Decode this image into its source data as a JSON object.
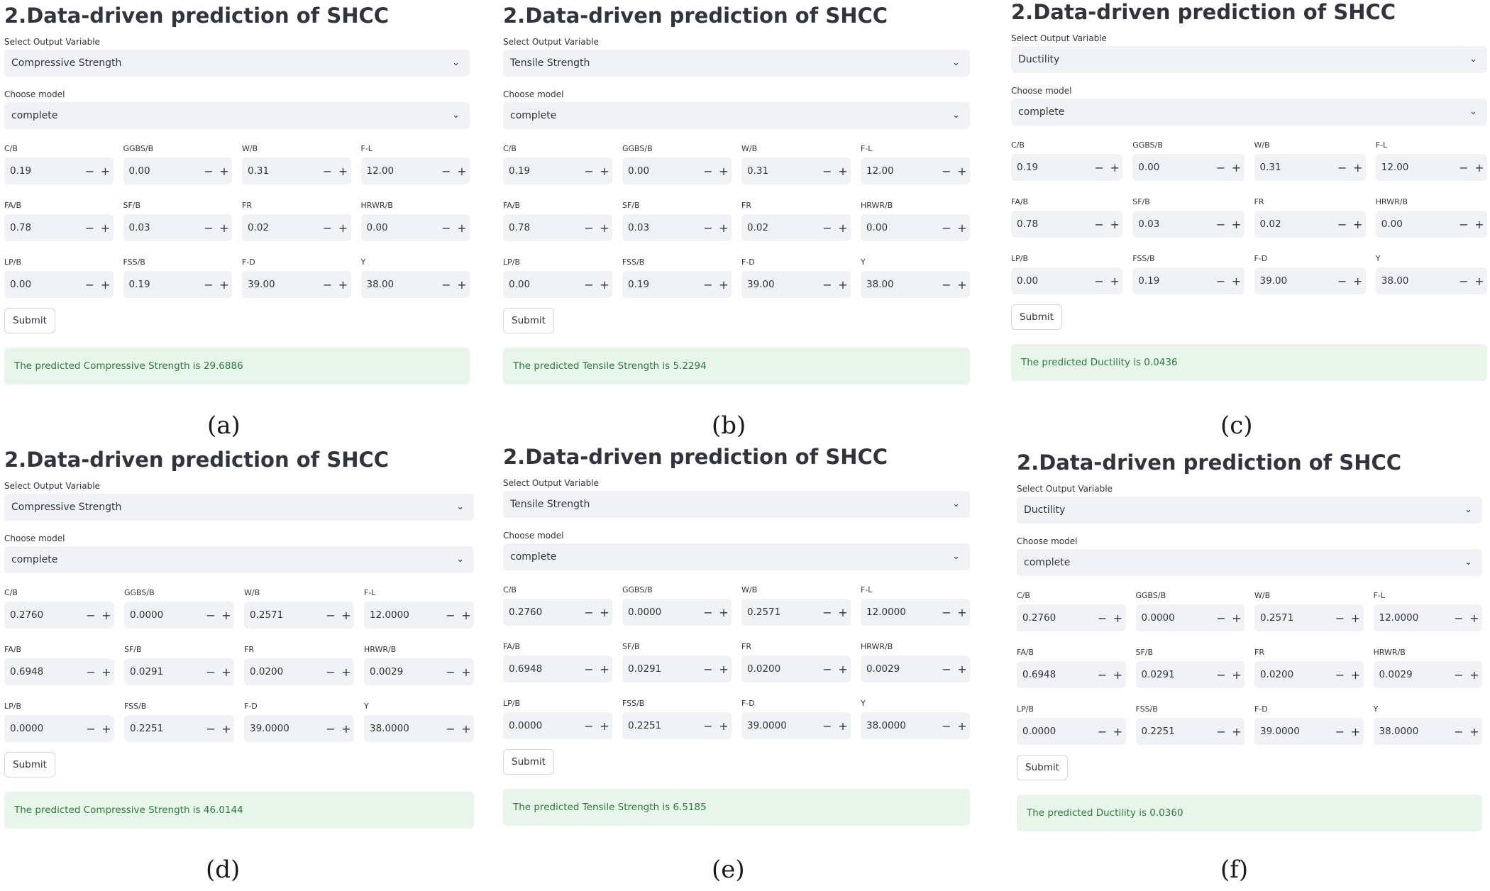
{
  "labels": {
    "select_output": "Select Output Variable",
    "choose_model": "Choose model",
    "submit": "Submit"
  },
  "colors": {
    "field_bg": "#f0f2f6",
    "success_bg": "#e8f5ea",
    "success_text": "#2b7a3b"
  },
  "icons": {
    "dropdown": "chevron-down-icon",
    "minus": "minus-icon",
    "plus": "plus-icon"
  },
  "panels": [
    {
      "title": "2.Data-driven prediction of SHCC",
      "output_variable": "Compressive Strength",
      "model": "complete",
      "fields": [
        {
          "label": "C/B",
          "value": "0.19"
        },
        {
          "label": "GGBS/B",
          "value": "0.00"
        },
        {
          "label": "W/B",
          "value": "0.31"
        },
        {
          "label": "F-L",
          "value": "12.00"
        },
        {
          "label": "FA/B",
          "value": "0.78"
        },
        {
          "label": "SF/B",
          "value": "0.03"
        },
        {
          "label": "FR",
          "value": "0.02"
        },
        {
          "label": "HRWR/B",
          "value": "0.00"
        },
        {
          "label": "LP/B",
          "value": "0.00"
        },
        {
          "label": "FSS/B",
          "value": "0.19"
        },
        {
          "label": "F-D",
          "value": "39.00"
        },
        {
          "label": "Y",
          "value": "38.00"
        }
      ],
      "result": "The predicted Compressive Strength is 29.6886",
      "caption": "(a)"
    },
    {
      "title": "2.Data-driven prediction of SHCC",
      "output_variable": "Tensile Strength",
      "model": "complete",
      "fields": [
        {
          "label": "C/B",
          "value": "0.19"
        },
        {
          "label": "GGBS/B",
          "value": "0.00"
        },
        {
          "label": "W/B",
          "value": "0.31"
        },
        {
          "label": "F-L",
          "value": "12.00"
        },
        {
          "label": "FA/B",
          "value": "0.78"
        },
        {
          "label": "SF/B",
          "value": "0.03"
        },
        {
          "label": "FR",
          "value": "0.02"
        },
        {
          "label": "HRWR/B",
          "value": "0.00"
        },
        {
          "label": "LP/B",
          "value": "0.00"
        },
        {
          "label": "FSS/B",
          "value": "0.19"
        },
        {
          "label": "F-D",
          "value": "39.00"
        },
        {
          "label": "Y",
          "value": "38.00"
        }
      ],
      "result": "The predicted Tensile Strength is 5.2294",
      "caption": "(b)"
    },
    {
      "title": "2.Data-driven prediction of SHCC",
      "output_variable": "Ductility",
      "model": "complete",
      "fields": [
        {
          "label": "C/B",
          "value": "0.19"
        },
        {
          "label": "GGBS/B",
          "value": "0.00"
        },
        {
          "label": "W/B",
          "value": "0.31"
        },
        {
          "label": "F-L",
          "value": "12.00"
        },
        {
          "label": "FA/B",
          "value": "0.78"
        },
        {
          "label": "SF/B",
          "value": "0.03"
        },
        {
          "label": "FR",
          "value": "0.02"
        },
        {
          "label": "HRWR/B",
          "value": "0.00"
        },
        {
          "label": "LP/B",
          "value": "0.00"
        },
        {
          "label": "FSS/B",
          "value": "0.19"
        },
        {
          "label": "F-D",
          "value": "39.00"
        },
        {
          "label": "Y",
          "value": "38.00"
        }
      ],
      "result": "The predicted Ductility is 0.0436",
      "caption": "(c)"
    },
    {
      "title": "2.Data-driven prediction of SHCC",
      "output_variable": "Compressive Strength",
      "model": "complete",
      "fields": [
        {
          "label": "C/B",
          "value": "0.2760"
        },
        {
          "label": "GGBS/B",
          "value": "0.0000"
        },
        {
          "label": "W/B",
          "value": "0.2571"
        },
        {
          "label": "F-L",
          "value": "12.0000"
        },
        {
          "label": "FA/B",
          "value": "0.6948"
        },
        {
          "label": "SF/B",
          "value": "0.0291"
        },
        {
          "label": "FR",
          "value": "0.0200"
        },
        {
          "label": "HRWR/B",
          "value": "0.0029"
        },
        {
          "label": "LP/B",
          "value": "0.0000"
        },
        {
          "label": "FSS/B",
          "value": "0.2251"
        },
        {
          "label": "F-D",
          "value": "39.0000"
        },
        {
          "label": "Y",
          "value": "38.0000"
        }
      ],
      "result": "The predicted Compressive Strength is 46.0144",
      "caption": "(d)"
    },
    {
      "title": "2.Data-driven prediction of SHCC",
      "output_variable": "Tensile Strength",
      "model": "complete",
      "fields": [
        {
          "label": "C/B",
          "value": "0.2760"
        },
        {
          "label": "GGBS/B",
          "value": "0.0000"
        },
        {
          "label": "W/B",
          "value": "0.2571"
        },
        {
          "label": "F-L",
          "value": "12.0000"
        },
        {
          "label": "FA/B",
          "value": "0.6948"
        },
        {
          "label": "SF/B",
          "value": "0.0291"
        },
        {
          "label": "FR",
          "value": "0.0200"
        },
        {
          "label": "HRWR/B",
          "value": "0.0029"
        },
        {
          "label": "LP/B",
          "value": "0.0000"
        },
        {
          "label": "FSS/B",
          "value": "0.2251"
        },
        {
          "label": "F-D",
          "value": "39.0000"
        },
        {
          "label": "Y",
          "value": "38.0000"
        }
      ],
      "result": "The predicted Tensile Strength is 6.5185",
      "caption": "(e)"
    },
    {
      "title": "2.Data-driven prediction of SHCC",
      "output_variable": "Ductility",
      "model": "complete",
      "fields": [
        {
          "label": "C/B",
          "value": "0.2760"
        },
        {
          "label": "GGBS/B",
          "value": "0.0000"
        },
        {
          "label": "W/B",
          "value": "0.2571"
        },
        {
          "label": "F-L",
          "value": "12.0000"
        },
        {
          "label": "FA/B",
          "value": "0.6948"
        },
        {
          "label": "SF/B",
          "value": "0.0291"
        },
        {
          "label": "FR",
          "value": "0.0200"
        },
        {
          "label": "HRWR/B",
          "value": "0.0029"
        },
        {
          "label": "LP/B",
          "value": "0.0000"
        },
        {
          "label": "FSS/B",
          "value": "0.2251"
        },
        {
          "label": "F-D",
          "value": "39.0000"
        },
        {
          "label": "Y",
          "value": "38.0000"
        }
      ],
      "result": "The predicted Ductility is 0.0360",
      "caption": "(f)"
    }
  ]
}
